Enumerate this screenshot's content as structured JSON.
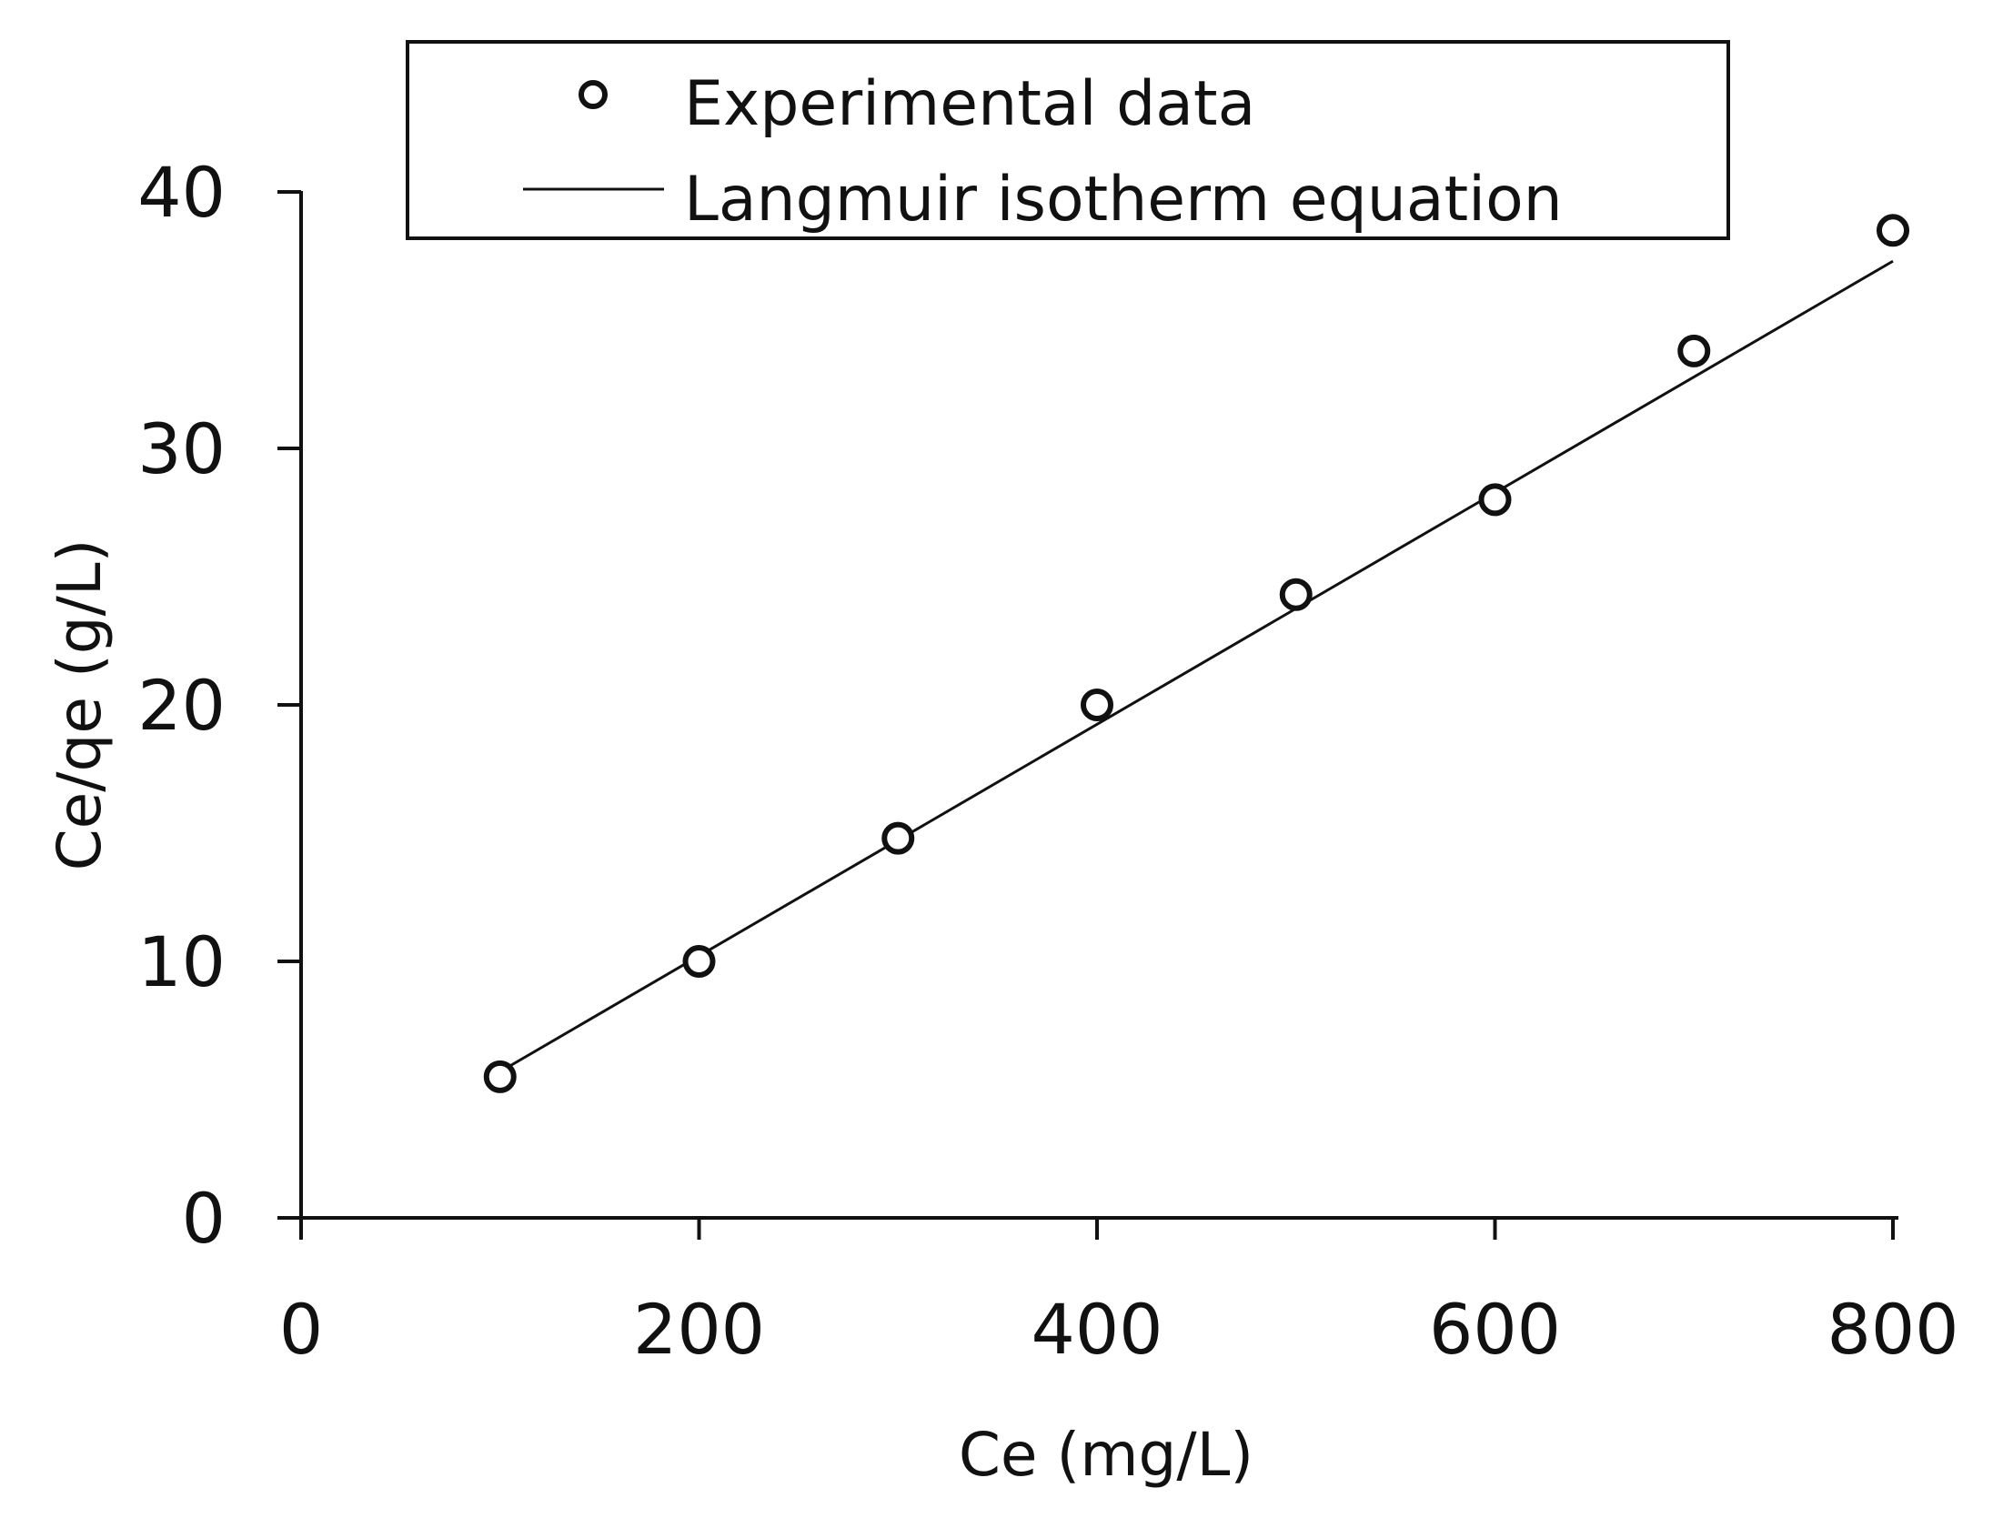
{
  "chart_data": {
    "type": "scatter",
    "title": "",
    "xlabel": "Ce (mg/L)",
    "ylabel": "Ce/qe (g/L)",
    "xlim": [
      0,
      800
    ],
    "ylim": [
      0,
      40
    ],
    "xticks": [
      0,
      200,
      400,
      600,
      800
    ],
    "yticks": [
      0,
      10,
      20,
      30,
      40
    ],
    "grid": false,
    "legend_position": "top",
    "series": [
      {
        "name": "Experimental data",
        "kind": "markers",
        "marker": "open-circle",
        "color": "#111111",
        "x": [
          100,
          200,
          300,
          400,
          500,
          600,
          700,
          800
        ],
        "y": [
          5.5,
          10.0,
          14.8,
          20.0,
          24.3,
          28.0,
          33.8,
          38.5
        ]
      },
      {
        "name": "Langmuir isotherm equation",
        "kind": "line",
        "color": "#111111",
        "x": [
          100,
          800
        ],
        "y": [
          5.7,
          37.3
        ]
      }
    ]
  }
}
